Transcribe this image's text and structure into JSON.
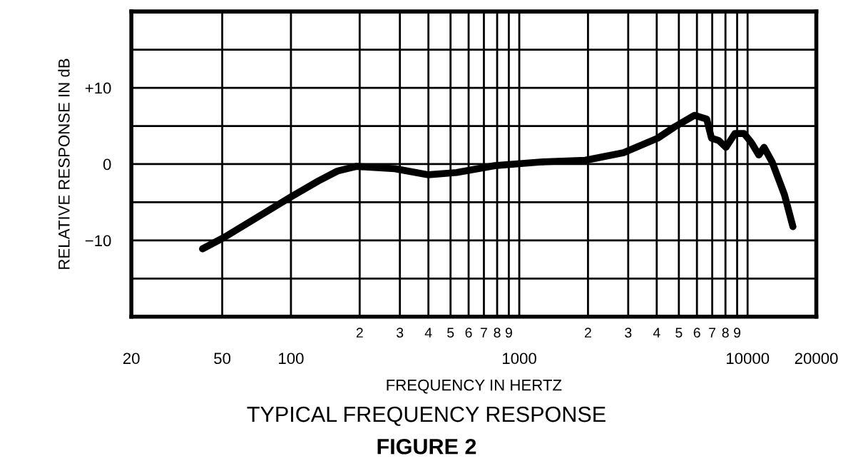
{
  "chart_data": {
    "type": "line",
    "title": "TYPICAL FREQUENCY RESPONSE",
    "subtitle": "FIGURE 2",
    "xlabel": "FREQUENCY IN HERTZ",
    "ylabel": "RELATIVE RESPONSE IN dB",
    "log": "x",
    "grid": true,
    "marker": "none",
    "line_style": "solid",
    "annotations": [
      "2",
      "3",
      "4",
      "5",
      "6",
      "7",
      "8",
      "9",
      "2",
      "3",
      "4",
      "5",
      "6",
      "7",
      "8",
      "9"
    ],
    "xlim": [
      20,
      20000
    ],
    "ylim": [
      -20,
      20
    ],
    "xticks": [
      20,
      50,
      100,
      {
        "value": 200,
        "label": null
      },
      {
        "value": 300,
        "label": null
      },
      {
        "value": 400,
        "label": null
      },
      {
        "value": 500,
        "label": null
      },
      {
        "value": 600,
        "label": null
      },
      {
        "value": 700,
        "label": null
      },
      {
        "value": 800,
        "label": null
      },
      {
        "value": 900,
        "label": null
      },
      1000,
      {
        "value": 2000,
        "label": null
      },
      {
        "value": 3000,
        "label": null
      },
      {
        "value": 4000,
        "label": null
      },
      {
        "value": 5000,
        "label": null
      },
      {
        "value": 6000,
        "label": null
      },
      {
        "value": 7000,
        "label": null
      },
      {
        "value": 8000,
        "label": null
      },
      {
        "value": 9000,
        "label": null
      },
      10000,
      20000
    ],
    "yticks": [
      {
        "value": -20,
        "label": null
      },
      {
        "value": -15,
        "label": null
      },
      {
        "value": -10,
        "label": "−10"
      },
      {
        "value": -5,
        "label": null
      },
      0,
      {
        "value": 5,
        "label": null
      },
      {
        "value": 10,
        "label": "+10"
      },
      {
        "value": 15,
        "label": null
      },
      {
        "value": 20,
        "label": null
      }
    ],
    "series": [
      {
        "color": "#000000",
        "x": [
          41,
          51,
          100,
          132,
          160,
          193,
          285,
          400,
          532,
          781,
          1270,
          1946,
          2860,
          4040,
          4800,
          5860,
          6620,
          6950,
          7470,
          8040,
          8800,
          9660,
          10400,
          11200,
          11800,
          12800,
          14500,
          15800
        ],
        "values": [
          -11.1,
          -9.6,
          -4.3,
          -2.2,
          -0.9,
          -0.3,
          -0.6,
          -1.4,
          -1.1,
          -0.2,
          0.3,
          0.5,
          1.5,
          3.4,
          4.9,
          6.4,
          5.9,
          3.4,
          3.1,
          2.2,
          4.0,
          4.0,
          2.8,
          1.2,
          2.2,
          0.3,
          -4.0,
          -8.2
        ]
      }
    ]
  }
}
